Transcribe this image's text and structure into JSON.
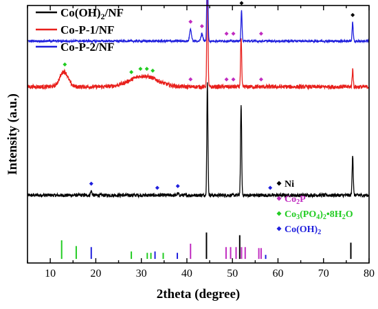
{
  "chart_data": {
    "type": "line",
    "xlabel": "2theta (degree)",
    "ylabel": "Intensity (a.u.)",
    "xlim": [
      5,
      80
    ],
    "xticks": [
      10,
      20,
      30,
      40,
      50,
      60,
      70,
      80
    ],
    "grid": false,
    "legend_position": "top-left",
    "series": [
      {
        "name": "Co(OH)2/NF",
        "name_base": "Co(OH)",
        "name_sub": "2",
        "name_rest": "/NF",
        "color": "#000000",
        "baseline": 0.0,
        "noise": 0.05,
        "peaks": [
          {
            "x": 19.0,
            "h": 0.12,
            "w": 0.15
          },
          {
            "x": 38.0,
            "h": 0.05,
            "w": 0.15
          },
          {
            "x": 44.5,
            "h": 3.3,
            "w": 0.12
          },
          {
            "x": 51.9,
            "h": 2.7,
            "w": 0.12
          },
          {
            "x": 76.4,
            "h": 1.2,
            "w": 0.12
          }
        ],
        "markers": [
          {
            "x": 19.0,
            "kind": "Co(OH)2"
          },
          {
            "x": 33.5,
            "kind": "Co(OH)2"
          },
          {
            "x": 38.0,
            "kind": "Co(OH)2"
          },
          {
            "x": 58.3,
            "kind": "Co(OH)2"
          }
        ]
      },
      {
        "name": "Co-P-1/NF",
        "name_base": "Co-P-1/NF",
        "name_sub": "",
        "name_rest": "",
        "color": "#e8201c",
        "baseline": 3.2,
        "noise": 0.06,
        "peaks": [
          {
            "x": 13.0,
            "h": 0.45,
            "w": 0.9
          },
          {
            "x": 30.5,
            "h": 0.32,
            "w": 3.0
          },
          {
            "x": 44.5,
            "h": 3.4,
            "w": 0.12
          },
          {
            "x": 51.9,
            "h": 1.45,
            "w": 0.12
          },
          {
            "x": 76.4,
            "h": 0.5,
            "w": 0.12
          }
        ],
        "markers": [
          {
            "x": 13.2,
            "kind": "Co3(PO4)2·8H2O"
          },
          {
            "x": 27.8,
            "kind": "Co3(PO4)2·8H2O"
          },
          {
            "x": 29.8,
            "kind": "Co3(PO4)2·8H2O"
          },
          {
            "x": 31.2,
            "kind": "Co3(PO4)2·8H2O"
          },
          {
            "x": 32.5,
            "kind": "Co3(PO4)2·8H2O"
          },
          {
            "x": 40.8,
            "kind": "Co2P"
          },
          {
            "x": 48.7,
            "kind": "Co2P"
          },
          {
            "x": 50.2,
            "kind": "Co2P"
          },
          {
            "x": 56.3,
            "kind": "Co2P"
          }
        ]
      },
      {
        "name": "Co-P-2/NF",
        "name_base": "Co-P-2/NF",
        "name_sub": "",
        "name_rest": "",
        "color": "#1f1fdd",
        "baseline": 4.55,
        "noise": 0.03,
        "peaks": [
          {
            "x": 40.8,
            "h": 0.35,
            "w": 0.2
          },
          {
            "x": 43.3,
            "h": 0.22,
            "w": 0.2
          },
          {
            "x": 44.5,
            "h": 2.6,
            "w": 0.12
          },
          {
            "x": 52.0,
            "h": 0.9,
            "w": 0.12
          },
          {
            "x": 76.4,
            "h": 0.55,
            "w": 0.12
          }
        ],
        "markers": [
          {
            "x": 40.8,
            "kind": "Co2P"
          },
          {
            "x": 43.3,
            "kind": "Co2P"
          },
          {
            "x": 44.5,
            "kind": "Ni"
          },
          {
            "x": 48.7,
            "kind": "Co2P"
          },
          {
            "x": 50.2,
            "kind": "Co2P"
          },
          {
            "x": 52.0,
            "kind": "Ni"
          },
          {
            "x": 56.3,
            "kind": "Co2P"
          },
          {
            "x": 76.4,
            "kind": "Ni"
          }
        ]
      }
    ],
    "reference_legend": [
      {
        "label_base": "Ni",
        "label_parts": [
          [
            "Ni",
            ""
          ]
        ],
        "color": "#000000"
      },
      {
        "label_base": "Co2P",
        "label_parts": [
          [
            "Co",
            ""
          ],
          [
            "2",
            "sub"
          ],
          [
            "P",
            ""
          ]
        ],
        "color": "#c02cc0"
      },
      {
        "label_base": "Co3(PO4)2•8H2O",
        "label_parts": [
          [
            "Co",
            ""
          ],
          [
            "3",
            "sub"
          ],
          [
            "(PO",
            ""
          ],
          [
            "4",
            "sub"
          ],
          [
            ")",
            ""
          ],
          [
            "2",
            "sub"
          ],
          [
            "•8H",
            ""
          ],
          [
            "2",
            "sub"
          ],
          [
            "O",
            ""
          ]
        ],
        "color": "#22cc22"
      },
      {
        "label_base": "Co(OH)2",
        "label_parts": [
          [
            "Co(OH)",
            ""
          ],
          [
            "2",
            "sub"
          ]
        ],
        "color": "#1f1fdd"
      }
    ],
    "reference_lines": [
      {
        "x": 12.5,
        "h": 0.55,
        "color": "#22cc22"
      },
      {
        "x": 15.7,
        "h": 0.38,
        "color": "#22cc22"
      },
      {
        "x": 19.0,
        "h": 0.35,
        "color": "#1f1fdd"
      },
      {
        "x": 27.8,
        "h": 0.22,
        "color": "#22cc22"
      },
      {
        "x": 31.3,
        "h": 0.18,
        "color": "#22cc22"
      },
      {
        "x": 32.1,
        "h": 0.18,
        "color": "#22cc22"
      },
      {
        "x": 33.0,
        "h": 0.22,
        "color": "#1f1fdd"
      },
      {
        "x": 34.8,
        "h": 0.18,
        "color": "#22cc22"
      },
      {
        "x": 37.9,
        "h": 0.18,
        "color": "#1f1fdd"
      },
      {
        "x": 40.8,
        "h": 0.45,
        "color": "#c02cc0"
      },
      {
        "x": 44.3,
        "h": 0.78,
        "color": "#000000"
      },
      {
        "x": 48.6,
        "h": 0.35,
        "color": "#c02cc0"
      },
      {
        "x": 49.6,
        "h": 0.35,
        "color": "#c02cc0"
      },
      {
        "x": 50.8,
        "h": 0.35,
        "color": "#c02cc0"
      },
      {
        "x": 51.6,
        "h": 0.7,
        "color": "#000000"
      },
      {
        "x": 52.0,
        "h": 0.35,
        "color": "#c02cc0"
      },
      {
        "x": 52.8,
        "h": 0.35,
        "color": "#c02cc0"
      },
      {
        "x": 55.8,
        "h": 0.32,
        "color": "#c02cc0"
      },
      {
        "x": 56.3,
        "h": 0.32,
        "color": "#c02cc0"
      },
      {
        "x": 57.3,
        "h": 0.12,
        "color": "#1f1fdd"
      },
      {
        "x": 76.0,
        "h": 0.48,
        "color": "#000000"
      }
    ],
    "marker_colors": {
      "Ni": "#000000",
      "Co2P": "#c02cc0",
      "Co3(PO4)2·8H2O": "#22cc22",
      "Co(OH)2": "#1f1fdd"
    }
  }
}
